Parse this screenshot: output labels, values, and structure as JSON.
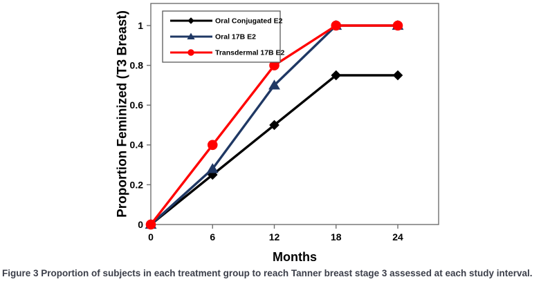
{
  "figure": {
    "caption_label": "Figure 3",
    "caption_text": "Proportion of subjects in each treatment group to reach Tanner breast stage 3 assessed at each study interval."
  },
  "chart_data": {
    "type": "line",
    "title": "",
    "xlabel": "Months",
    "ylabel": "Proportion Feminized (T3 Breast)",
    "x": [
      0,
      6,
      12,
      18,
      24
    ],
    "x_ticks": [
      0,
      6,
      12,
      18,
      24
    ],
    "x_tick_labels": [
      "0",
      "6",
      "12",
      "18",
      "24"
    ],
    "y_ticks": [
      0,
      0.2,
      0.4,
      0.6,
      0.8,
      1
    ],
    "y_tick_labels": [
      "0",
      "0.2",
      "0.4",
      "0.6",
      "0.8",
      "1"
    ],
    "xlim": [
      0,
      28
    ],
    "ylim": [
      0,
      1.11
    ],
    "grid": false,
    "legend_position": "top-left-inside",
    "series": [
      {
        "name": "Oral Conjugated E2",
        "values": [
          0,
          0.25,
          0.5,
          0.75,
          0.75
        ],
        "color": "#000000",
        "marker": "diamond"
      },
      {
        "name": "Oral 17B E2",
        "values": [
          0,
          0.28,
          0.7,
          1.0,
          1.0
        ],
        "color": "#1F3864",
        "marker": "triangle"
      },
      {
        "name": "Transdermal 17B E2",
        "values": [
          0,
          0.4,
          0.8,
          1.0,
          1.0
        ],
        "color": "#FF0000",
        "marker": "circle"
      }
    ]
  },
  "colors": {
    "axis": "#6e6e6e",
    "plot_border": "#6e6e6e",
    "legend_border": "#595959",
    "tick_label": "#000000",
    "caption_text": "#3b3e49",
    "background": "#ffffff"
  }
}
